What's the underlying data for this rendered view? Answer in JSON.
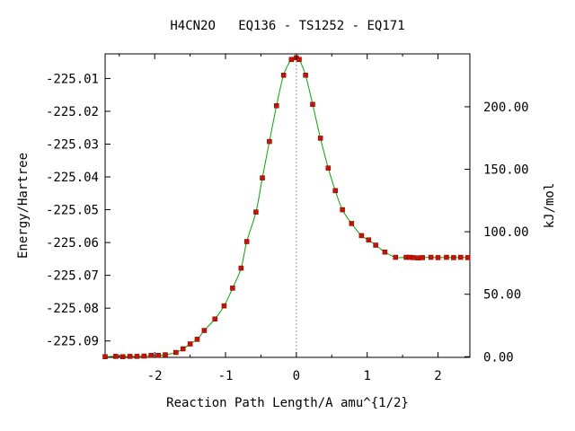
{
  "chart_data": {
    "type": "line",
    "title": "H4CN2O   EQ136 - TS1252 - EQ171",
    "xlabel": "Reaction Path Length/A amu^{1/2}",
    "ylabel": "Energy/Hartree",
    "y2label": "kJ/mol",
    "xlim": [
      -2.7,
      2.45
    ],
    "ylim": [
      -225.095,
      -225.0025
    ],
    "x_ticks": [
      -2,
      -1,
      0,
      1,
      2
    ],
    "x_tick_labels": [
      "-2",
      "-1",
      "0",
      "1",
      "2"
    ],
    "y_ticks": [
      -225.01,
      -225.02,
      -225.03,
      -225.04,
      -225.05,
      -225.06,
      -225.07,
      -225.08,
      -225.09
    ],
    "y_tick_labels": [
      "-225.01",
      "-225.02",
      "-225.03",
      "-225.04",
      "-225.05",
      "-225.06",
      "-225.07",
      "-225.08",
      "-225.09"
    ],
    "y2_ref_hartree": -225.0948,
    "y2_ticks": [
      0,
      50,
      100,
      150,
      200
    ],
    "y2_tick_labels": [
      "0.00",
      "50.00",
      "100.00",
      "150.00",
      "200.00"
    ],
    "ts_marker_x": 0.0,
    "line_color": "#00aa00",
    "marker_color": "#cc1100",
    "ts_line_color": "#999999",
    "series": [
      {
        "x": [
          -2.7,
          -2.55,
          -2.45,
          -2.35,
          -2.25,
          -2.15,
          -2.05,
          -1.95,
          -1.85,
          -1.7,
          -1.6,
          -1.5,
          -1.4,
          -1.3,
          -1.15,
          -1.02,
          -0.9,
          -0.78,
          -0.7,
          -0.57,
          -0.48,
          -0.38,
          -0.28,
          -0.18,
          -0.07,
          0.0,
          0.04,
          0.13,
          0.23,
          0.34,
          0.45,
          0.55,
          0.65,
          0.78,
          0.92,
          1.02,
          1.12,
          1.25,
          1.4,
          1.55,
          1.6,
          1.65,
          1.72,
          1.78,
          1.9,
          2.0,
          2.12,
          2.22,
          2.32,
          2.42
        ],
        "y": [
          -225.0948,
          -225.0947,
          -225.0948,
          -225.0947,
          -225.0947,
          -225.0946,
          -225.0944,
          -225.0944,
          -225.0942,
          -225.0935,
          -225.0924,
          -225.0909,
          -225.0895,
          -225.0868,
          -225.0833,
          -225.0793,
          -225.0739,
          -225.0678,
          -225.0597,
          -225.0507,
          -225.0403,
          -225.0292,
          -225.0183,
          -225.009,
          -225.0042,
          -225.0037,
          -225.0042,
          -225.009,
          -225.0179,
          -225.0282,
          -225.0373,
          -225.0442,
          -225.05,
          -225.0542,
          -225.0579,
          -225.0592,
          -225.0608,
          -225.0629,
          -225.0645,
          -225.0645,
          -225.0645,
          -225.0646,
          -225.0647,
          -225.0646,
          -225.0645,
          -225.0646,
          -225.0645,
          -225.0646,
          -225.0645,
          -225.0646
        ]
      }
    ]
  }
}
